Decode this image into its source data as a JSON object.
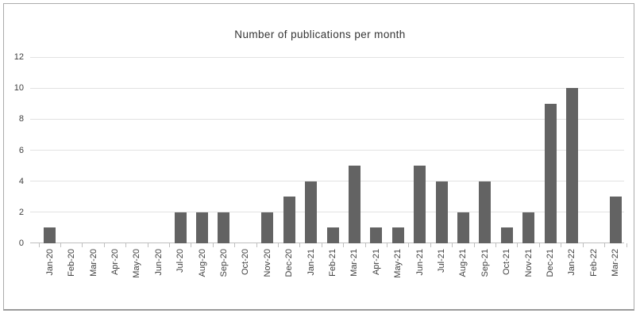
{
  "chart_data": {
    "type": "bar",
    "title": "Number of publications per month",
    "categories": [
      "Jan-20",
      "Feb-20",
      "Mar-20",
      "Apr-20",
      "May-20",
      "Jun-20",
      "Jul-20",
      "Aug-20",
      "Sep-20",
      "Oct-20",
      "Nov-20",
      "Dec-20",
      "Jan-21",
      "Feb-21",
      "Mar-21",
      "Apr-21",
      "May-21",
      "Jun-21",
      "Jul-21",
      "Aug-21",
      "Sep-21",
      "Oct-21",
      "Nov-21",
      "Dec-21",
      "Jan-22",
      "Feb-22",
      "Mar-22"
    ],
    "values": [
      1,
      0,
      0,
      0,
      0,
      0,
      2,
      2,
      2,
      0,
      2,
      3,
      4,
      1,
      5,
      1,
      1,
      5,
      4,
      2,
      4,
      1,
      2,
      9,
      10,
      0,
      3
    ],
    "xlabel": "",
    "ylabel": "",
    "ylim": [
      0,
      12
    ],
    "ytick_step": 2,
    "ytick_labels": [
      "0",
      "2",
      "4",
      "6",
      "8",
      "10",
      "12"
    ],
    "grid": true,
    "legend_position": "none",
    "colors": {
      "bar": "#636363",
      "gridline": "#e2e2e2",
      "axis_line": "#bfbfbf",
      "tick_mark": "#bfbfbf",
      "axis_text": "#3f3f3f",
      "title_text": "#343434",
      "frame_border": "#ababab",
      "background": "#ffffff"
    }
  }
}
